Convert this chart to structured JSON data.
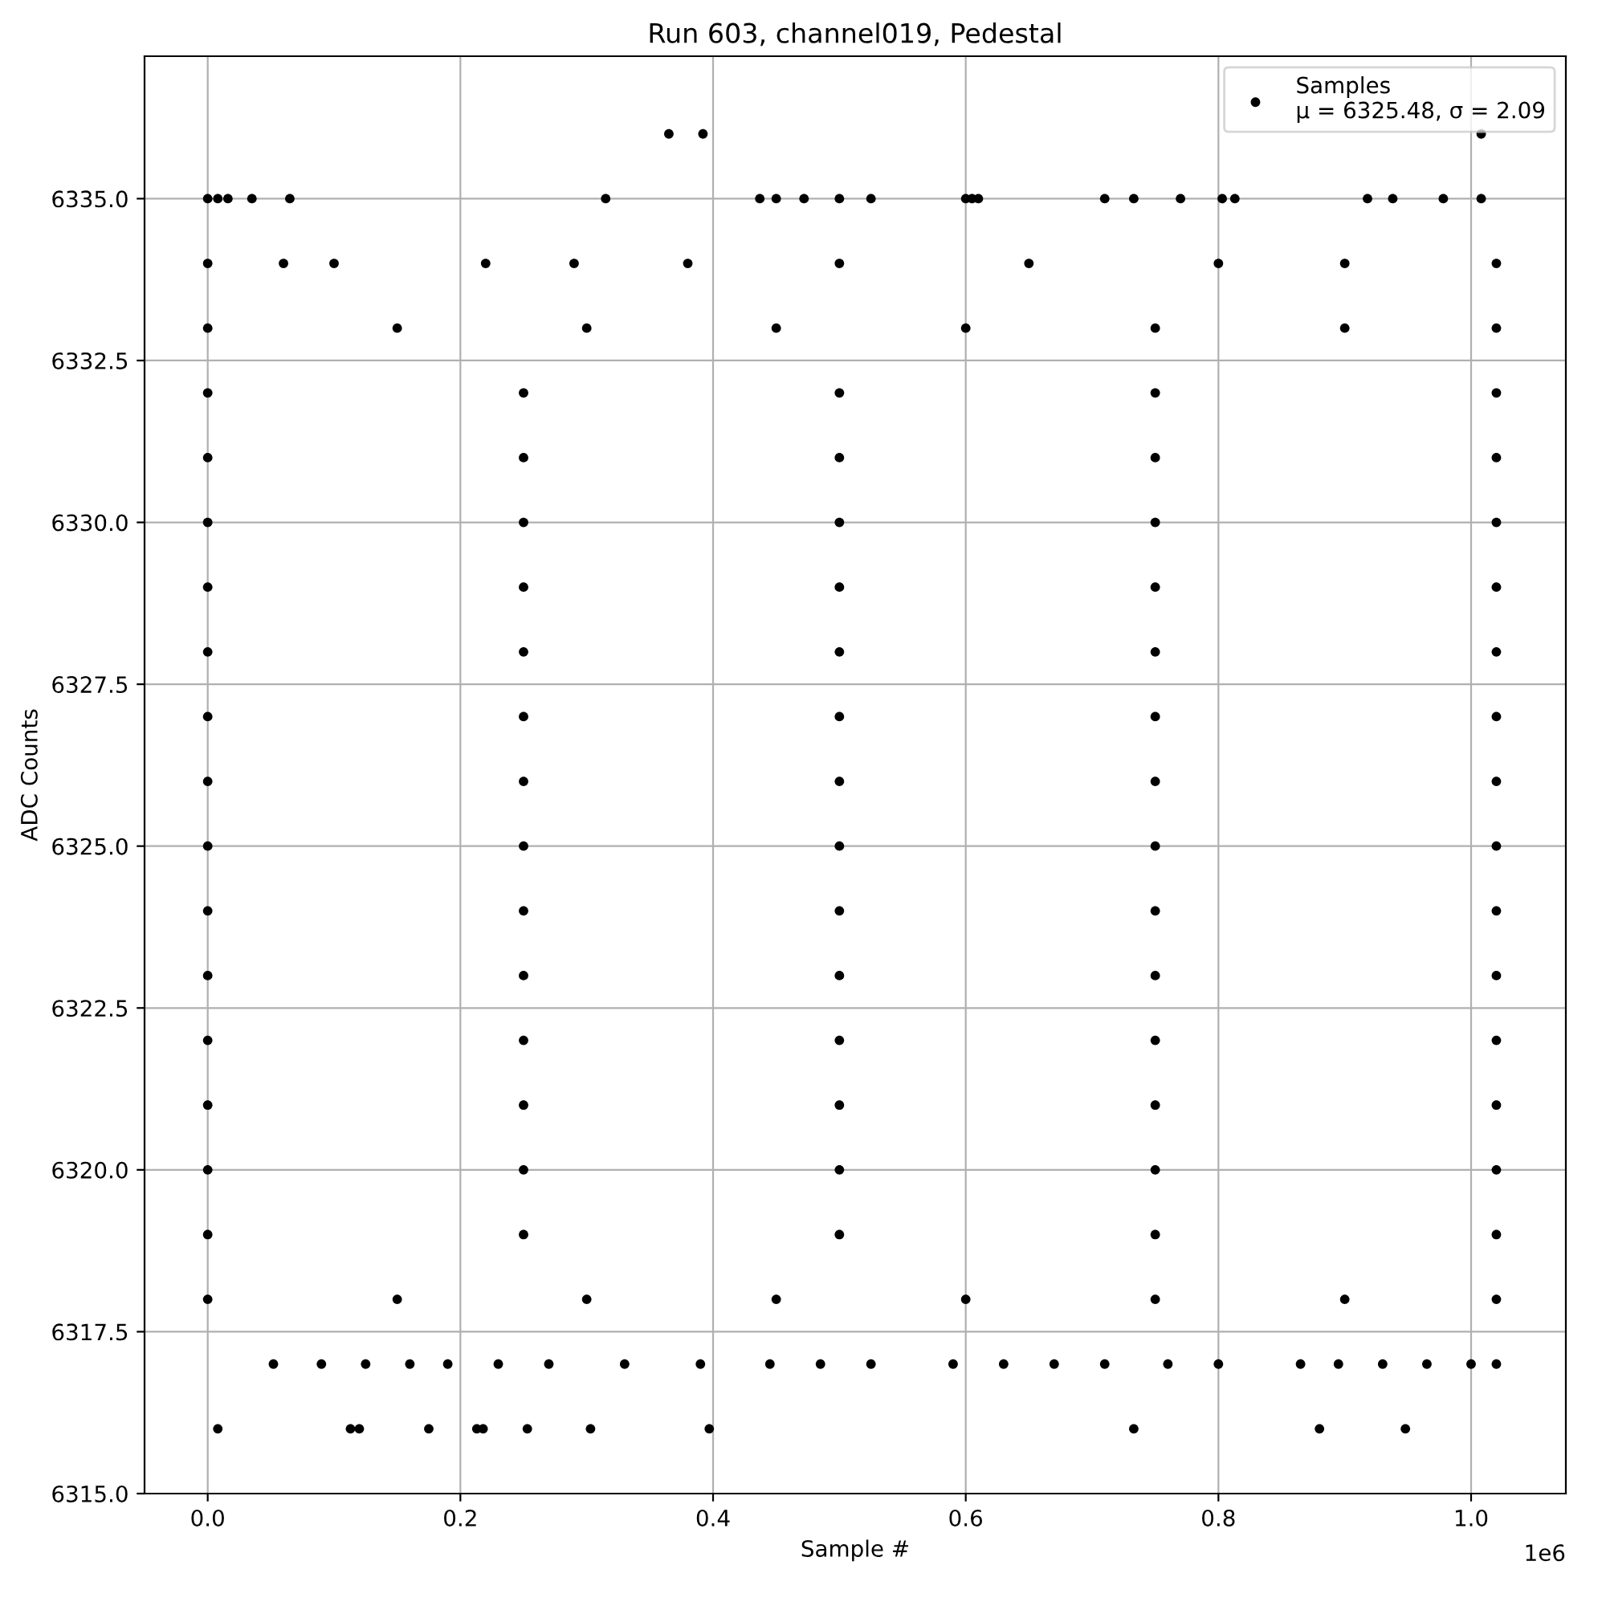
{
  "chart_data": {
    "type": "scatter",
    "title": "Run 603, channel019, Pedestal",
    "xlabel": "Sample #",
    "ylabel": "ADC Counts",
    "xlim": [
      -0.05,
      1.075
    ],
    "ylim": [
      6315.0,
      6337.2
    ],
    "xticks": [
      {
        "value": 0,
        "label": "0.0"
      },
      {
        "value": 0.2,
        "label": "0.2"
      },
      {
        "value": 0.4,
        "label": "0.4"
      },
      {
        "value": 0.6,
        "label": "0.6"
      },
      {
        "value": 0.8,
        "label": "0.8"
      },
      {
        "value": 1.0,
        "label": "1.0"
      }
    ],
    "yticks": [
      {
        "value": 6315,
        "label": "6315.0"
      },
      {
        "value": 6317.5,
        "label": "6317.5"
      },
      {
        "value": 6320,
        "label": "6320.0"
      },
      {
        "value": 6322.5,
        "label": "6322.5"
      },
      {
        "value": 6325,
        "label": "6325.0"
      },
      {
        "value": 6327.5,
        "label": "6327.5"
      },
      {
        "value": 6330,
        "label": "6330.0"
      },
      {
        "value": 6332.5,
        "label": "6332.5"
      },
      {
        "value": 6335,
        "label": "6335.0"
      }
    ],
    "grid": true,
    "legend": "top right",
    "marker": "circle",
    "annotations": [
      "1e6"
    ],
    "series": [
      {
        "name": "Samples\nμ = 6325.48, σ = 2.09",
        "color": "#000000",
        "x": [
          0.365,
          0.392,
          1.008,
          0,
          0.008,
          0.016,
          0.035,
          0.065,
          0.315,
          0.437,
          0.45,
          0.472,
          0.5,
          0.525,
          0.6,
          0.605,
          0.61,
          0.71,
          0.733,
          0.77,
          0.803,
          0.813,
          0.918,
          0.938,
          0.978,
          1.008,
          0.008,
          0.113,
          0.12,
          0.175,
          0.213,
          0.218,
          0.253,
          0.303,
          0.397,
          0.733,
          0.88,
          0.948,
          0.052,
          0.09,
          0.125,
          0.16,
          0.19,
          0.23,
          0.27,
          0.33,
          0.39,
          0.445,
          0.485,
          0.525,
          0.59,
          0.63,
          0.67,
          0.71,
          0.76,
          0.8,
          0.865,
          0.895,
          0.93,
          0.965,
          1.0,
          1.02,
          0,
          0.06,
          0.1,
          0.22,
          0.29,
          0.38,
          0.5,
          0.65,
          0.8,
          0.9,
          1.02,
          0,
          0.15,
          0.3,
          0.45,
          0.6,
          0.75,
          0.9,
          1.02,
          0,
          0.15,
          0.3,
          0.45,
          0.6,
          0.75,
          0.9,
          1.02,
          0,
          0.25,
          0.5,
          0.75,
          1.02,
          0,
          0.25,
          0.5,
          0.75,
          1.02,
          0,
          0.25,
          0.5,
          0.75,
          1.02,
          0,
          0.25,
          0.5,
          0.75,
          1.02,
          0,
          0.25,
          0.5,
          0.75,
          1.02,
          0,
          0.25,
          0.5,
          0.75,
          1.02,
          0,
          0.25,
          0.5,
          0.75,
          1.02,
          0,
          0.25,
          0.5,
          0.75,
          1.02,
          0,
          0.25,
          0.5,
          0.75,
          1.02,
          0,
          0.25,
          0.5,
          0.75,
          1.02,
          0,
          0.25,
          0.5,
          0.75,
          1.02,
          0,
          0.25,
          0.5,
          0.75,
          1.02,
          0,
          0.25,
          0.5,
          0.75,
          1.02,
          0,
          0.25,
          0.5,
          0.75,
          1.02
        ],
        "values": [
          6336,
          6336,
          6336,
          6335,
          6335,
          6335,
          6335,
          6335,
          6335,
          6335,
          6335,
          6335,
          6335,
          6335,
          6335,
          6335,
          6335,
          6335,
          6335,
          6335,
          6335,
          6335,
          6335,
          6335,
          6335,
          6335,
          6316,
          6316,
          6316,
          6316,
          6316,
          6316,
          6316,
          6316,
          6316,
          6316,
          6316,
          6316,
          6317,
          6317,
          6317,
          6317,
          6317,
          6317,
          6317,
          6317,
          6317,
          6317,
          6317,
          6317,
          6317,
          6317,
          6317,
          6317,
          6317,
          6317,
          6317,
          6317,
          6317,
          6317,
          6317,
          6317,
          6334,
          6334,
          6334,
          6334,
          6334,
          6334,
          6334,
          6334,
          6334,
          6334,
          6334,
          6333,
          6333,
          6333,
          6333,
          6333,
          6333,
          6333,
          6333,
          6318,
          6318,
          6318,
          6318,
          6318,
          6318,
          6318,
          6318,
          6319,
          6319,
          6319,
          6319,
          6319,
          6320,
          6320,
          6320,
          6320,
          6320,
          6321,
          6321,
          6321,
          6321,
          6321,
          6322,
          6322,
          6322,
          6322,
          6322,
          6323,
          6323,
          6323,
          6323,
          6323,
          6324,
          6324,
          6324,
          6324,
          6324,
          6325,
          6325,
          6325,
          6325,
          6325,
          6326,
          6326,
          6326,
          6326,
          6326,
          6327,
          6327,
          6327,
          6327,
          6327,
          6328,
          6328,
          6328,
          6328,
          6328,
          6329,
          6329,
          6329,
          6329,
          6329,
          6330,
          6330,
          6330,
          6330,
          6330,
          6331,
          6331,
          6331,
          6331,
          6331,
          6332,
          6332,
          6332,
          6332,
          6332
        ]
      }
    ]
  }
}
